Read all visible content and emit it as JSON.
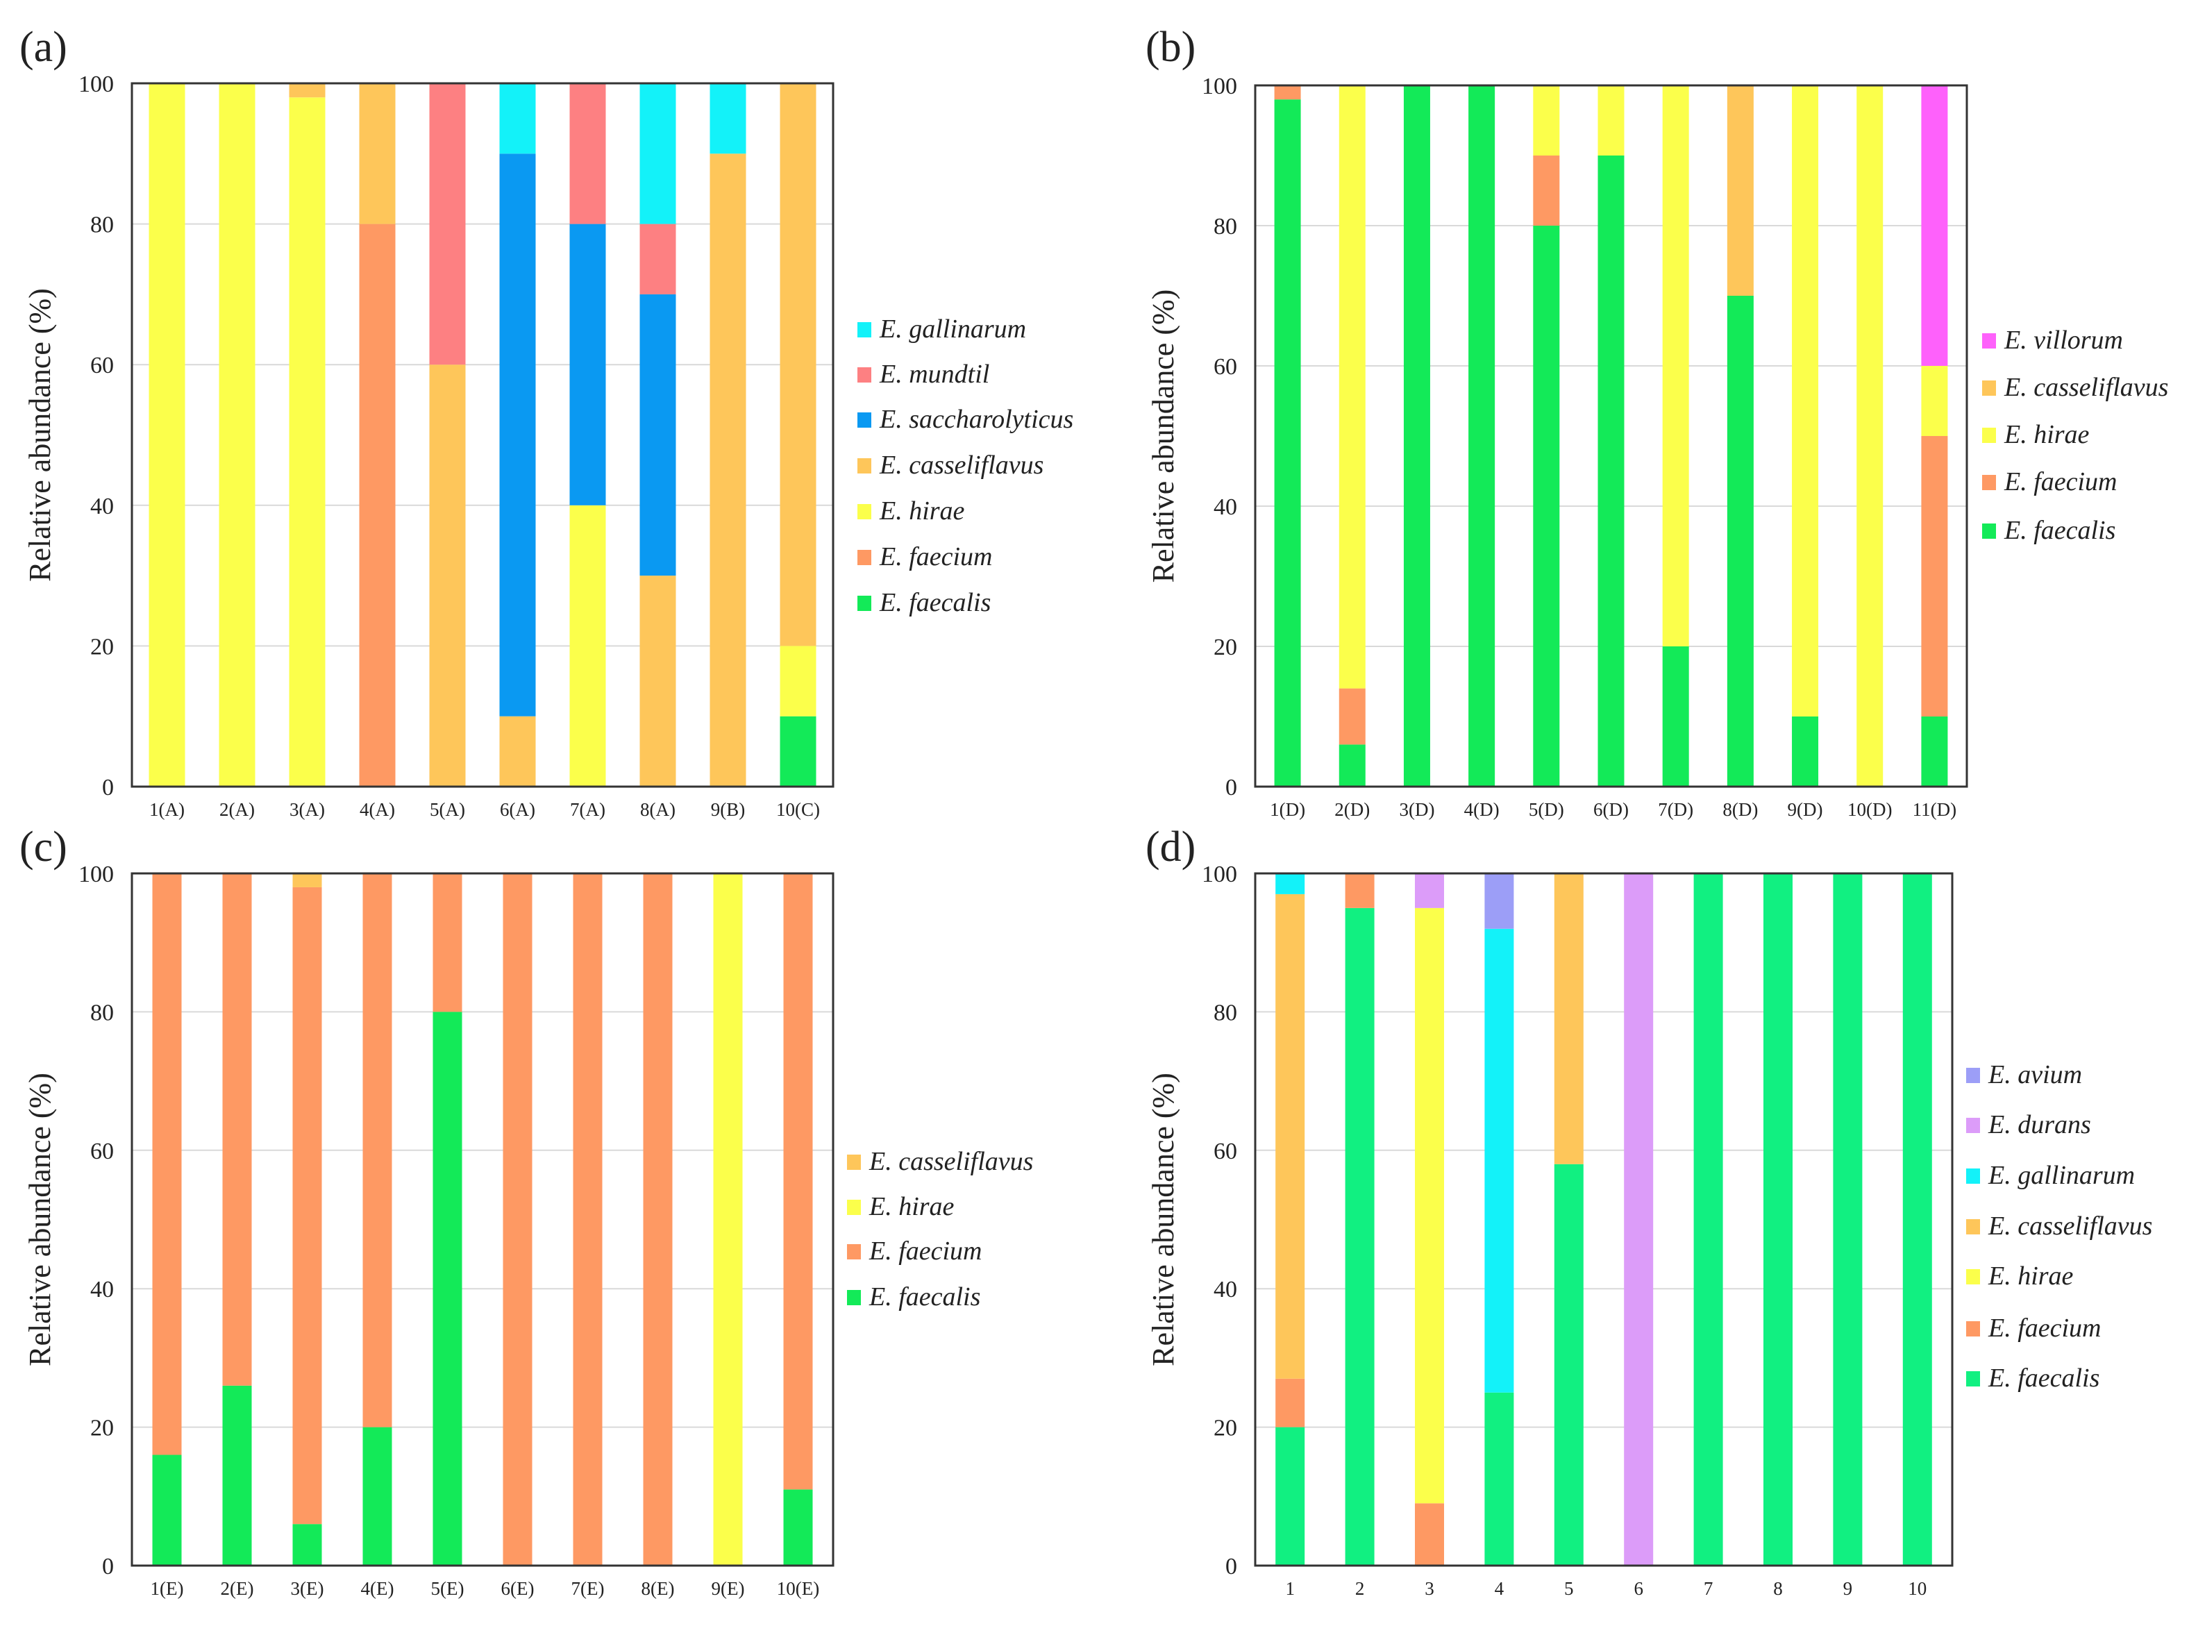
{
  "ylabel": "Relative abundance (%)",
  "yticks": [
    "0",
    "20",
    "40",
    "60",
    "80",
    "100"
  ],
  "colors": {
    "E. faecalis": "#13ea58",
    "E. faecium": "#fe9963",
    "E. hirae": "#fbff4b",
    "E. casseliflavus": "#fec65a",
    "E. saccharolyticus": "#0a99f2",
    "E. mundtil": "#fd8082",
    "E. gallinarum": "#13f2f9",
    "E. villorum": "#fe61fb",
    "E. avium": "#9c9ef7",
    "E. durans": "#dc9cf9",
    "E. faecalis (d)": "#11f081"
  },
  "chart_data": [
    {
      "panel": "(a)",
      "type": "bar",
      "stacked": true,
      "ylabel": "Relative abundance (%)",
      "ylim": [
        0,
        100
      ],
      "grid": true,
      "legend_position": "right",
      "categories": [
        "1(A)",
        "2(A)",
        "3(A)",
        "4(A)",
        "5(A)",
        "6(A)",
        "7(A)",
        "8(A)",
        "9(B)",
        "10(C)"
      ],
      "series": [
        {
          "name": "E. faecalis",
          "values": [
            0,
            0,
            0,
            0,
            0,
            0,
            0,
            0,
            0,
            10
          ]
        },
        {
          "name": "E. faecium",
          "values": [
            0,
            0,
            0,
            80,
            0,
            0,
            0,
            0,
            0,
            0
          ]
        },
        {
          "name": "E. hirae",
          "values": [
            100,
            100,
            98,
            0,
            0,
            0,
            40,
            0,
            0,
            10
          ]
        },
        {
          "name": "E. casseliflavus",
          "values": [
            0,
            0,
            2,
            20,
            60,
            10,
            0,
            30,
            90,
            80
          ]
        },
        {
          "name": "E. saccharolyticus",
          "values": [
            0,
            0,
            0,
            0,
            0,
            80,
            40,
            40,
            0,
            0
          ]
        },
        {
          "name": "E. mundtil",
          "values": [
            0,
            0,
            0,
            0,
            40,
            0,
            20,
            10,
            0,
            0
          ]
        },
        {
          "name": "E. gallinarum",
          "values": [
            0,
            0,
            0,
            0,
            0,
            10,
            0,
            20,
            10,
            0
          ]
        }
      ],
      "legend_order": [
        "E. gallinarum",
        "E. mundtil",
        "E. saccharolyticus",
        "E. casseliflavus",
        "E. hirae",
        "E. faecium",
        "E. faecalis"
      ]
    },
    {
      "panel": "(b)",
      "type": "bar",
      "stacked": true,
      "ylabel": "Relative abundance (%)",
      "ylim": [
        0,
        100
      ],
      "grid": true,
      "legend_position": "right",
      "categories": [
        "1(D)",
        "2(D)",
        "3(D)",
        "4(D)",
        "5(D)",
        "6(D)",
        "7(D)",
        "8(D)",
        "9(D)",
        "10(D)",
        "11(D)"
      ],
      "series": [
        {
          "name": "E. faecalis",
          "values": [
            98,
            6,
            100,
            100,
            80,
            90,
            20,
            70,
            10,
            0,
            10
          ]
        },
        {
          "name": "E. faecium",
          "values": [
            2,
            8,
            0,
            0,
            10,
            0,
            0,
            0,
            0,
            0,
            40
          ]
        },
        {
          "name": "E. hirae",
          "values": [
            0,
            86,
            0,
            0,
            10,
            10,
            80,
            0,
            90,
            100,
            10
          ]
        },
        {
          "name": "E. casseliflavus",
          "values": [
            0,
            0,
            0,
            0,
            0,
            0,
            0,
            30,
            0,
            0,
            0
          ]
        },
        {
          "name": "E. villorum",
          "values": [
            0,
            0,
            0,
            0,
            0,
            0,
            0,
            0,
            0,
            0,
            40
          ]
        }
      ],
      "legend_order": [
        "E. villorum",
        "E. casseliflavus",
        "E. hirae",
        "E. faecium",
        "E. faecalis"
      ]
    },
    {
      "panel": "(c)",
      "type": "bar",
      "stacked": true,
      "ylabel": "Relative abundance (%)",
      "ylim": [
        0,
        100
      ],
      "grid": true,
      "legend_position": "right",
      "categories": [
        "1(E)",
        "2(E)",
        "3(E)",
        "4(E)",
        "5(E)",
        "6(E)",
        "7(E)",
        "8(E)",
        "9(E)",
        "10(E)"
      ],
      "series": [
        {
          "name": "E. faecalis",
          "values": [
            16,
            26,
            6,
            20,
            80,
            0,
            0,
            0,
            0,
            11
          ]
        },
        {
          "name": "E. faecium",
          "values": [
            84,
            74,
            92,
            80,
            20,
            100,
            100,
            100,
            0,
            89
          ]
        },
        {
          "name": "E. hirae",
          "values": [
            0,
            0,
            0,
            0,
            0,
            0,
            0,
            0,
            100,
            0
          ]
        },
        {
          "name": "E. casseliflavus",
          "values": [
            0,
            0,
            2,
            0,
            0,
            0,
            0,
            0,
            0,
            0
          ]
        }
      ],
      "legend_order": [
        "E. casseliflavus",
        "E. hirae",
        "E. faecium",
        "E. faecalis"
      ]
    },
    {
      "panel": "(d)",
      "type": "bar",
      "stacked": true,
      "ylabel": "Relative abundance (%)",
      "ylim": [
        0,
        100
      ],
      "grid": true,
      "legend_position": "right",
      "categories": [
        "1",
        "2",
        "3",
        "4",
        "5",
        "6",
        "7",
        "8",
        "9",
        "10"
      ],
      "series": [
        {
          "name": "E. faecalis",
          "values": [
            20,
            95,
            0,
            25,
            58,
            0,
            100,
            100,
            100,
            100
          ]
        },
        {
          "name": "E. faecium",
          "values": [
            7,
            5,
            9,
            0,
            0,
            0,
            0,
            0,
            0,
            0
          ]
        },
        {
          "name": "E. hirae",
          "values": [
            0,
            0,
            86,
            0,
            0,
            0,
            0,
            0,
            0,
            0
          ]
        },
        {
          "name": "E. casseliflavus",
          "values": [
            70,
            0,
            0,
            0,
            42,
            0,
            0,
            0,
            0,
            0
          ]
        },
        {
          "name": "E. gallinarum",
          "values": [
            3,
            0,
            0,
            67,
            0,
            0,
            0,
            0,
            0,
            0
          ]
        },
        {
          "name": "E. durans",
          "values": [
            0,
            0,
            5,
            0,
            0,
            100,
            0,
            0,
            0,
            0
          ]
        },
        {
          "name": "E. avium",
          "values": [
            0,
            0,
            0,
            8,
            0,
            0,
            0,
            0,
            0,
            0
          ]
        }
      ],
      "legend_order": [
        "E. avium",
        "E. durans",
        "E. gallinarum",
        "E. casseliflavus",
        "E. hirae",
        "E. faecium",
        "E. faecalis"
      ]
    }
  ]
}
